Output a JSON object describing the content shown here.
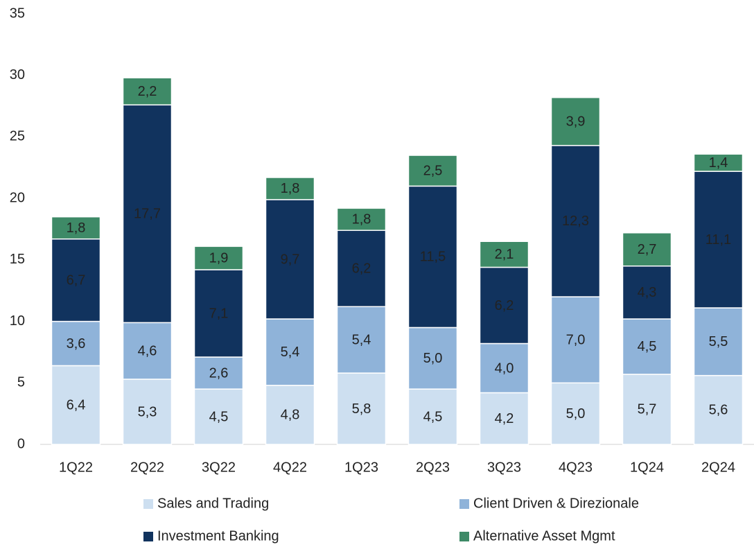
{
  "chart_data": {
    "type": "stacked_bar",
    "categories": [
      "1Q22",
      "2Q22",
      "3Q22",
      "4Q22",
      "1Q23",
      "2Q23",
      "3Q23",
      "4Q23",
      "1Q24",
      "2Q24"
    ],
    "series": [
      {
        "name": "Sales and Trading",
        "color": "#cddff0",
        "label_color": "#000000",
        "values": [
          6.4,
          5.3,
          4.5,
          4.8,
          5.8,
          4.5,
          4.2,
          5.0,
          5.7,
          5.6
        ],
        "value_labels": [
          "6,4",
          "5,3",
          "4,5",
          "4,8",
          "5,8",
          "4,5",
          "4,2",
          "5,0",
          "5,7",
          "5,6"
        ]
      },
      {
        "name": "Client Driven & Direzionale",
        "color": "#8fb3d9",
        "label_color": "#000000",
        "values": [
          3.6,
          4.6,
          2.6,
          5.4,
          5.4,
          5.0,
          4.0,
          7.0,
          4.5,
          5.5
        ],
        "value_labels": [
          "3,6",
          "4,6",
          "2,6",
          "5,4",
          "5,4",
          "5,0",
          "4,0",
          "7,0",
          "4,5",
          "5,5"
        ]
      },
      {
        "name": "Investment Banking",
        "color": "#11335e",
        "label_color": "#ffffff",
        "values": [
          6.7,
          17.7,
          7.1,
          9.7,
          6.2,
          11.5,
          6.2,
          12.3,
          4.3,
          11.1
        ],
        "value_labels": [
          "6,7",
          "17,7",
          "7,1",
          "9,7",
          "6,2",
          "11,5",
          "6,2",
          "12,3",
          "4,3",
          "11,1"
        ]
      },
      {
        "name": "Alternative Asset Mgmt",
        "color": "#3e8a67",
        "label_color": "#ffffff",
        "values": [
          1.8,
          2.2,
          1.9,
          1.8,
          1.8,
          2.5,
          2.1,
          3.9,
          2.7,
          1.4
        ],
        "value_labels": [
          "1,8",
          "2,2",
          "1,9",
          "1,8",
          "1,8",
          "2,5",
          "2,1",
          "3,9",
          "2,7",
          "1,4"
        ]
      }
    ],
    "ylim": [
      0,
      35
    ],
    "yticks": [
      0,
      5,
      10,
      15,
      20,
      25,
      30,
      35
    ],
    "grid": false
  }
}
